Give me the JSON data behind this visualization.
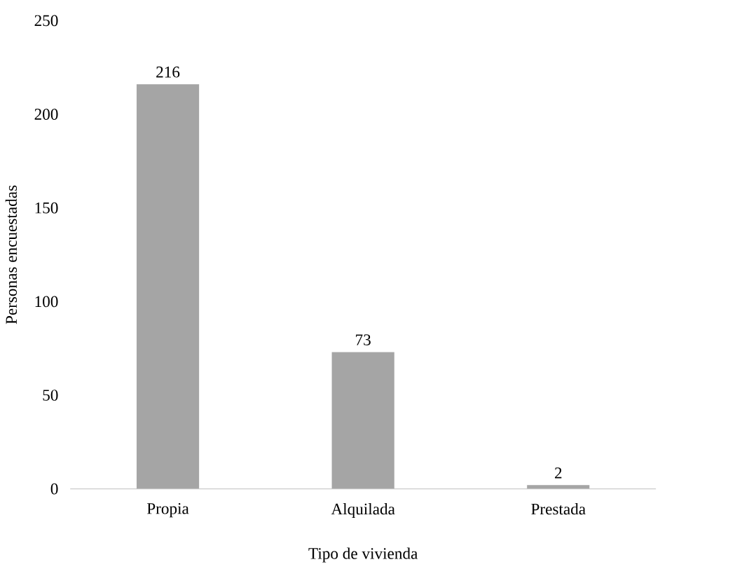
{
  "chart_data": {
    "type": "bar",
    "xlabel": "Tipo de vivienda",
    "ylabel": "Personas encuestadas",
    "categories": [
      "Propia",
      "Alquilada",
      "Prestada"
    ],
    "values": [
      216,
      73,
      2
    ],
    "color": "#a5a5a5",
    "data_labels": true,
    "ylim": [
      0,
      250
    ],
    "yticks": [
      0,
      50,
      100,
      150,
      200,
      250
    ],
    "grid": false
  }
}
